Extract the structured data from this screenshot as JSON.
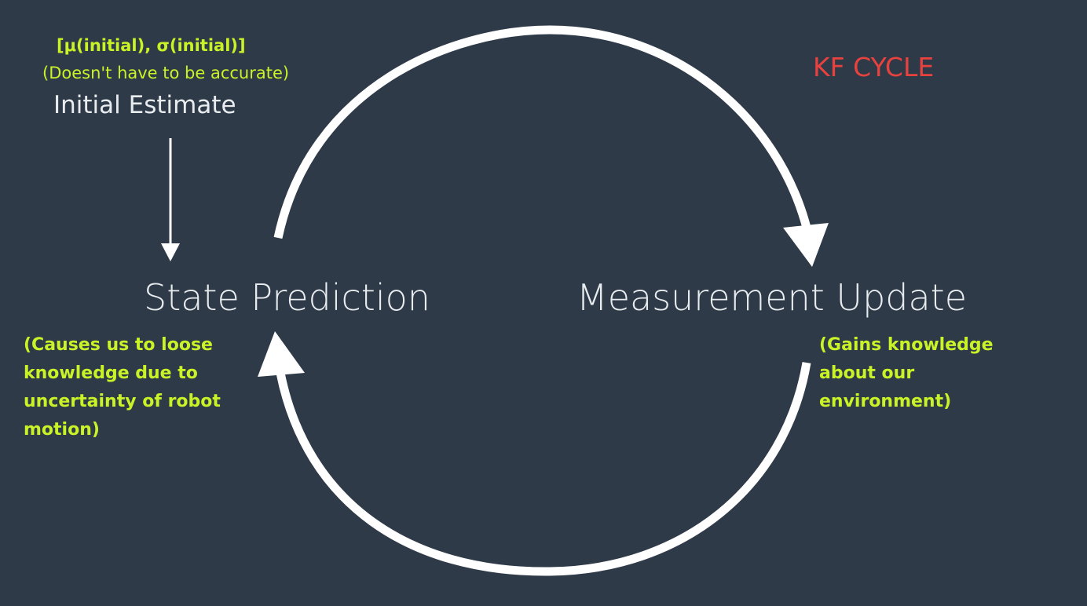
{
  "title": "KF CYCLE",
  "initial_estimate": {
    "values": "[μ(initial), σ(initial)]",
    "note": "(Doesn't have to be accurate)",
    "label": "Initial Estimate"
  },
  "state_prediction": {
    "label": "State Prediction",
    "note_lines": [
      "(Causes us to loose",
      "knowledge due to",
      "uncertainty of robot",
      "motion)"
    ]
  },
  "measurement_update": {
    "label": "Measurement Update",
    "note_lines": [
      "(Gains knowledge",
      "about our",
      "environment)"
    ]
  },
  "colors": {
    "background": "#2e3a48",
    "highlight": "#c9f227",
    "title": "#e8423f",
    "primary_text": "#e8ecef",
    "arrows": "#ffffff"
  }
}
